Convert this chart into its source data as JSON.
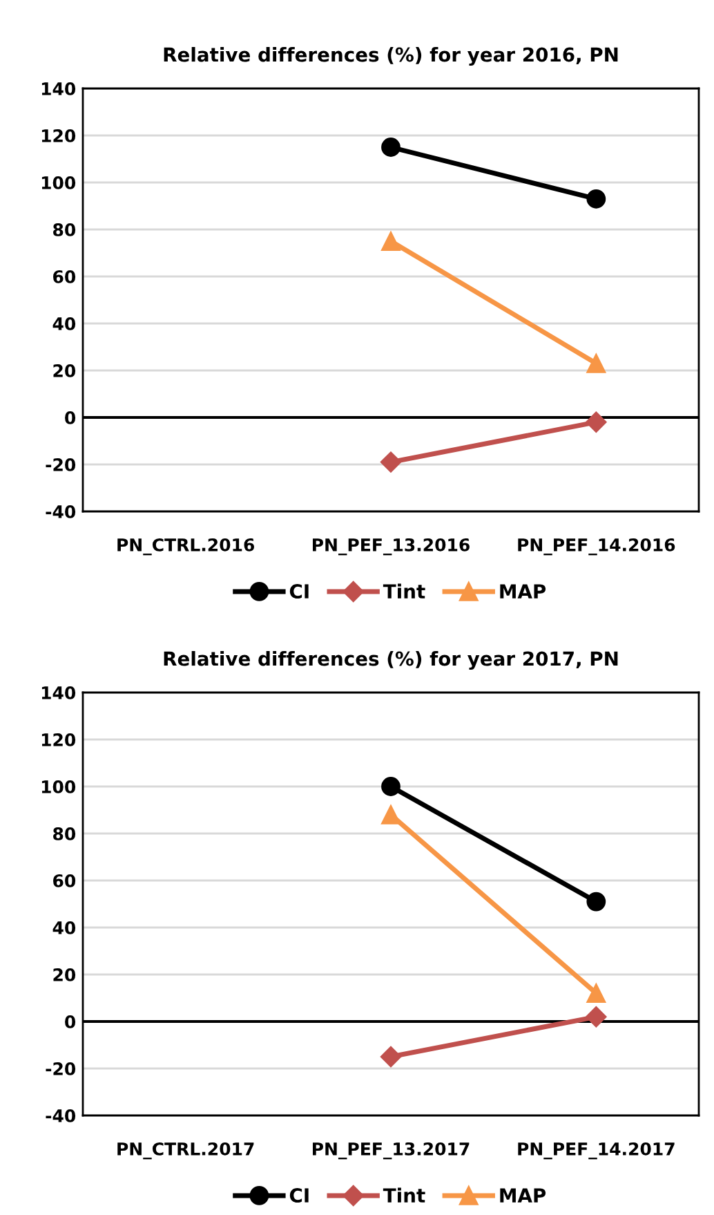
{
  "chart_data": [
    {
      "type": "line",
      "title": "Relative differences (%) for year 2016, PN",
      "categories": [
        "PN_CTRL.2016",
        "PN_PEF_13.2016",
        "PN_PEF_14.2016"
      ],
      "series": [
        {
          "name": "CI",
          "color": "#000000",
          "marker": "circle",
          "values": [
            null,
            115,
            93
          ]
        },
        {
          "name": "Tint",
          "color": "#c0504d",
          "marker": "diamond",
          "values": [
            null,
            -19,
            -2
          ]
        },
        {
          "name": "MAP",
          "color": "#f79646",
          "marker": "triangle",
          "values": [
            null,
            75,
            23
          ]
        }
      ],
      "ylim": [
        -40,
        140
      ],
      "yticks": [
        -40,
        -20,
        0,
        20,
        40,
        60,
        80,
        100,
        120,
        140
      ],
      "grid": "y",
      "legend": "bottom",
      "ref_lines": [
        {
          "axis": "y",
          "value": 0,
          "label": null,
          "color": "#000000"
        }
      ]
    },
    {
      "type": "line",
      "title": "Relative differences (%) for year 2017, PN",
      "categories": [
        "PN_CTRL.2017",
        "PN_PEF_13.2017",
        "PN_PEF_14.2017"
      ],
      "series": [
        {
          "name": "CI",
          "color": "#000000",
          "marker": "circle",
          "values": [
            null,
            100,
            51
          ]
        },
        {
          "name": "Tint",
          "color": "#c0504d",
          "marker": "diamond",
          "values": [
            null,
            -15,
            2
          ]
        },
        {
          "name": "MAP",
          "color": "#f79646",
          "marker": "triangle",
          "values": [
            null,
            88,
            12
          ]
        }
      ],
      "ylim": [
        -40,
        140
      ],
      "yticks": [
        -40,
        -20,
        0,
        20,
        40,
        60,
        80,
        100,
        120,
        140
      ],
      "grid": "y",
      "legend": "bottom",
      "ref_lines": [
        {
          "axis": "y",
          "value": 0,
          "label": null,
          "color": "#000000"
        }
      ]
    }
  ]
}
